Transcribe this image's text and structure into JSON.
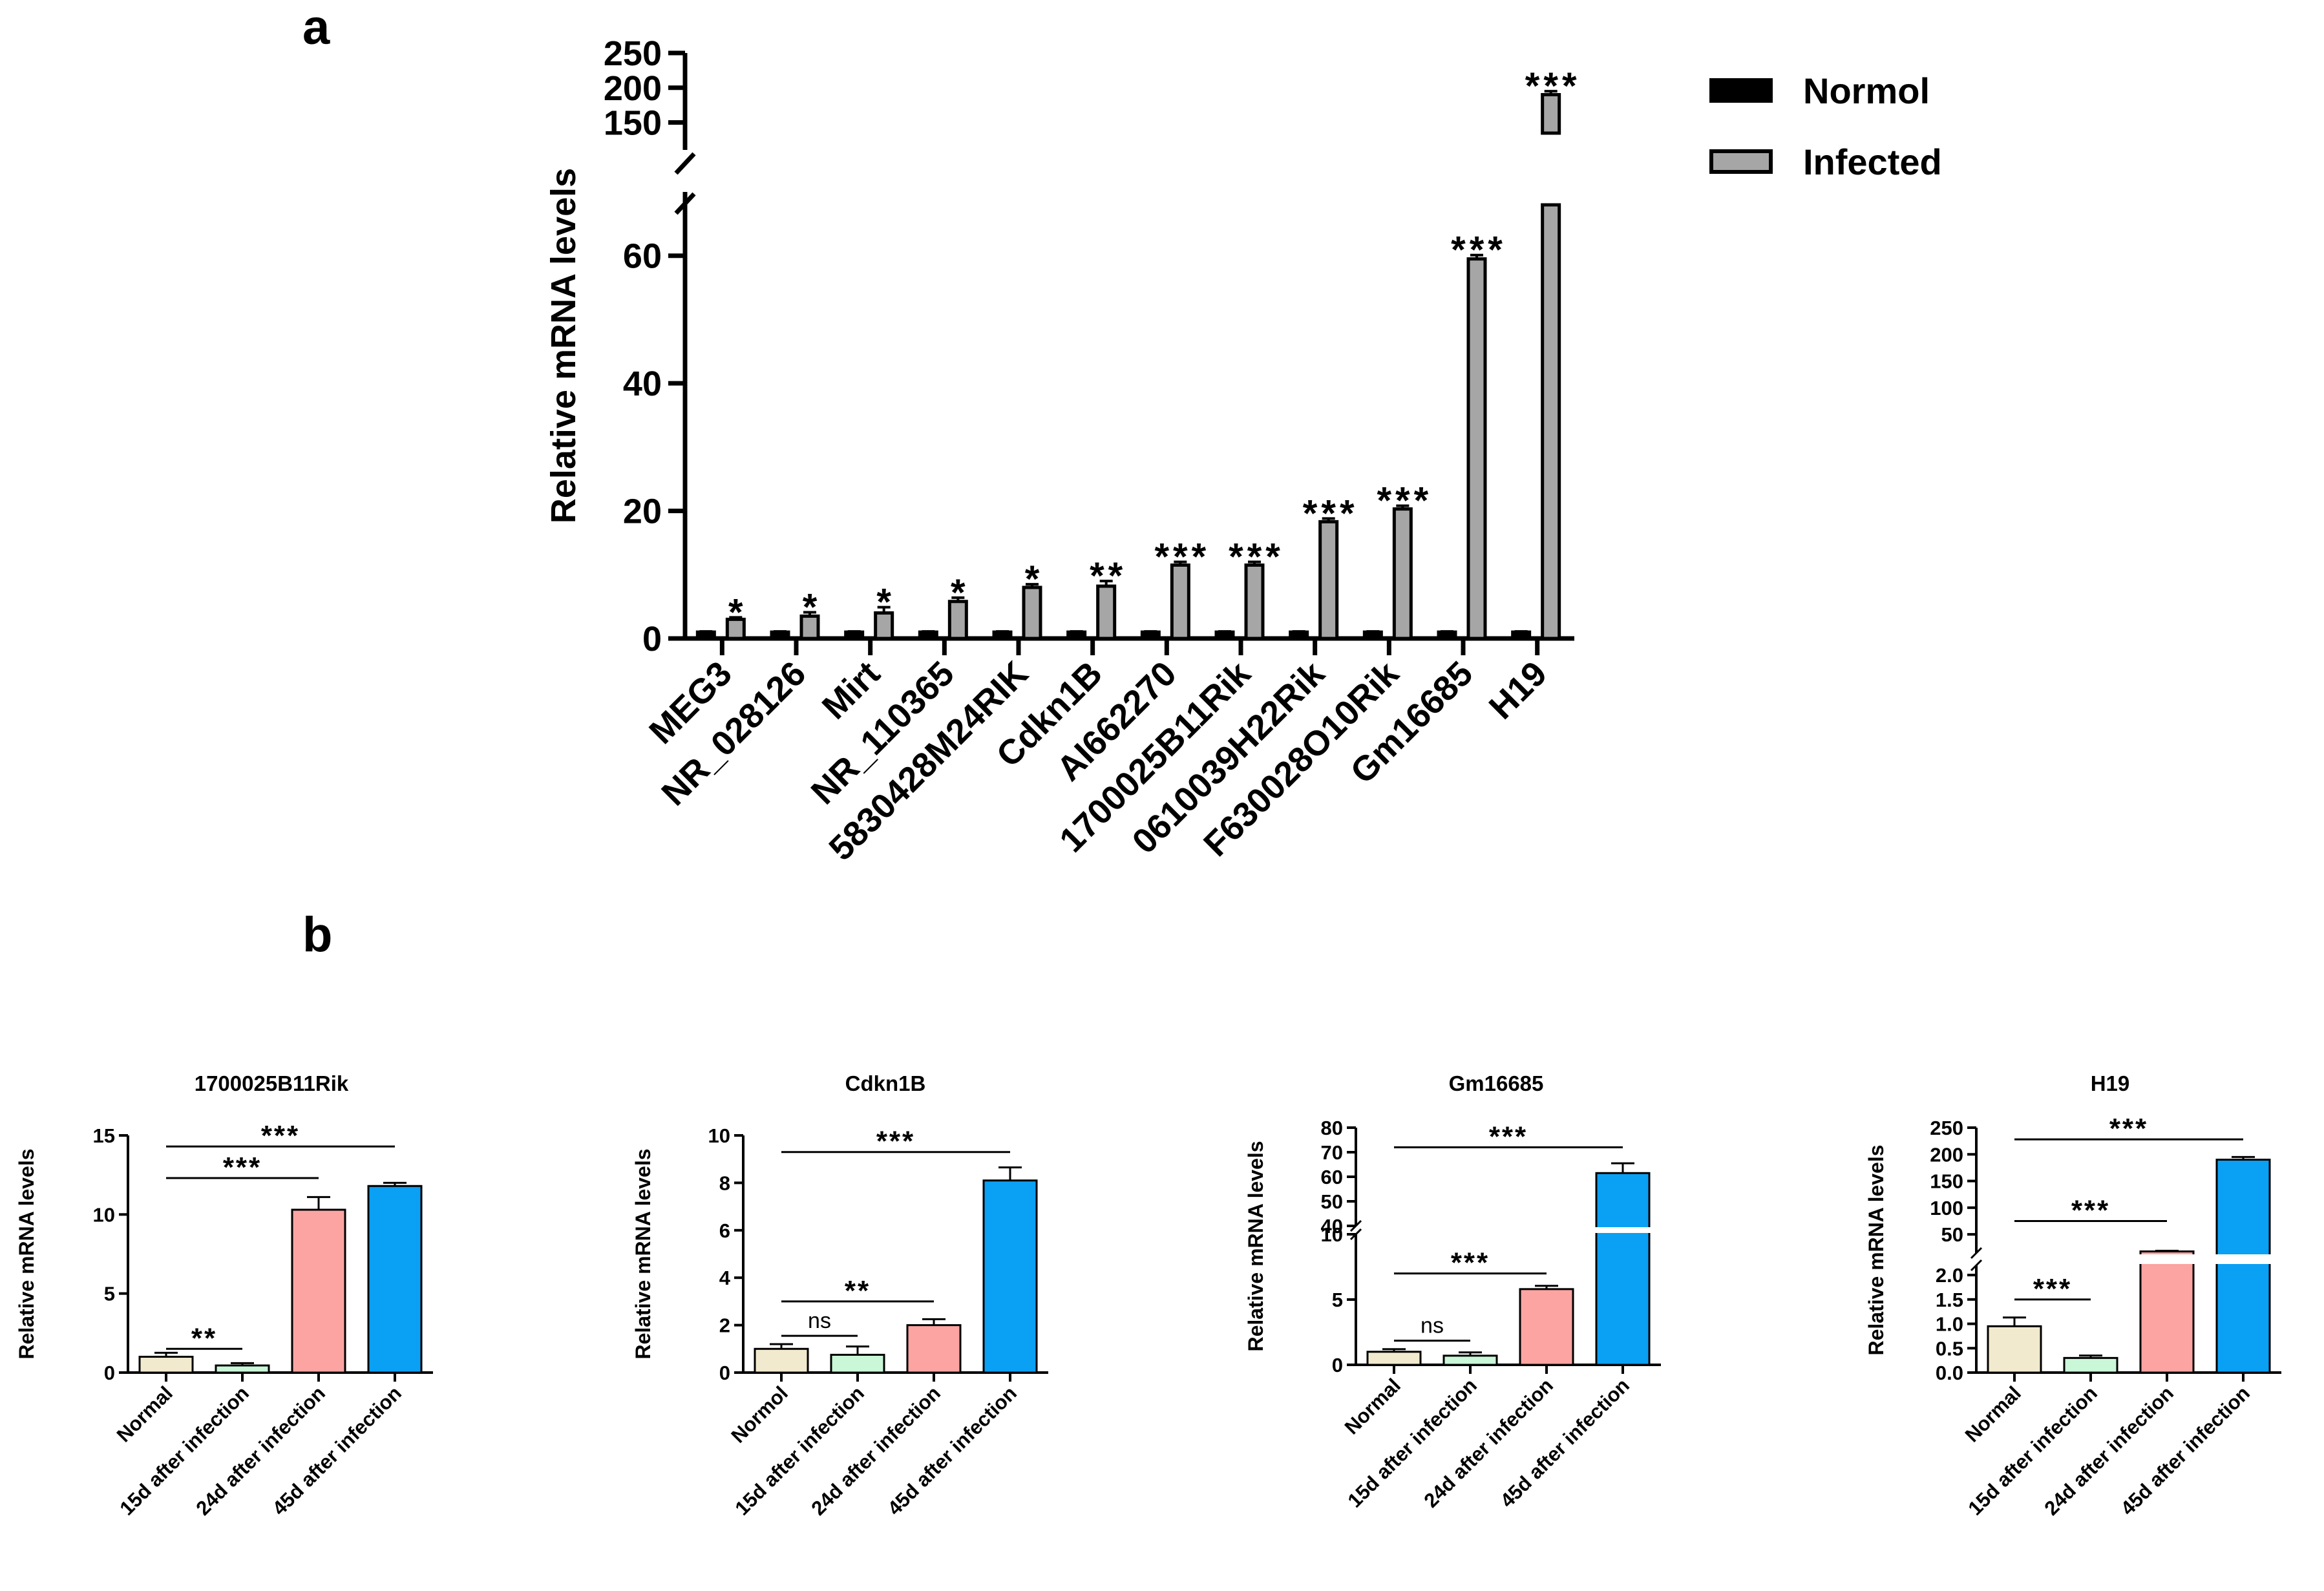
{
  "figure": {
    "panel_a_label": "a",
    "panel_b_label": "b"
  },
  "chart_data": [
    {
      "id": "a",
      "type": "bar",
      "title": "",
      "ylabel": "Relative mRNA levels",
      "xlabel": "",
      "categories": [
        "MEG3",
        "NR_028126",
        "Mirt",
        "NR_110365",
        "5830428M24RIK",
        "Cdkn1B",
        "AI662270",
        "1700025B11Rik",
        "0610039H22Rik",
        "F630028O10Rik",
        "Gm16685",
        "H19"
      ],
      "series": [
        {
          "name": "Normol",
          "color": "#000000",
          "values": [
            1,
            1,
            1,
            1,
            1,
            1,
            1,
            1,
            1,
            1,
            1,
            1
          ],
          "errors": [
            0.1,
            0.1,
            0.1,
            0.1,
            0.1,
            0.1,
            0.1,
            0.1,
            0.1,
            0.1,
            0.1,
            0.1
          ]
        },
        {
          "name": "Infected",
          "color": "#a6a6a6",
          "values": [
            3,
            3.5,
            4,
            5.8,
            8,
            8.2,
            11.5,
            11.5,
            18.3,
            20.3,
            59.5,
            190
          ],
          "errors": [
            0.3,
            0.6,
            0.9,
            0.6,
            0.5,
            0.8,
            0.5,
            0.5,
            0.5,
            0.5,
            0.6,
            5
          ]
        }
      ],
      "significance": [
        "*",
        "*",
        "*",
        "*",
        "*",
        "**",
        "***",
        "***",
        "***",
        "***",
        "***",
        "***"
      ],
      "y_segments": [
        {
          "range": [
            0,
            70
          ],
          "ticks": [
            0,
            20,
            40,
            60
          ]
        },
        {
          "range": [
            130,
            250
          ],
          "ticks": [
            150,
            200,
            250
          ]
        }
      ],
      "legend": "top-right"
    },
    {
      "id": "b1",
      "type": "bar",
      "title": "1700025B11Rik",
      "ylabel": "Relative mRNA levels",
      "categories": [
        "Normal",
        "15d after infection",
        "24d after infection",
        "45d after infection"
      ],
      "values": [
        1,
        0.45,
        10.3,
        11.8
      ],
      "errors": [
        0.25,
        0.15,
        0.8,
        0.2
      ],
      "colors": [
        "#f2eace",
        "#c9f7d8",
        "#fca4a2",
        "#0aa0f4"
      ],
      "y_segments": [
        {
          "range": [
            0,
            15
          ],
          "ticks": [
            0,
            5,
            10,
            15
          ]
        }
      ],
      "comparisons": [
        {
          "from": 0,
          "to": 1,
          "label": "**",
          "y": 1.5
        },
        {
          "from": 0,
          "to": 2,
          "label": "***",
          "y": 12.3
        },
        {
          "from": 0,
          "to": 3,
          "label": "***",
          "y": 14.3
        }
      ]
    },
    {
      "id": "b2",
      "type": "bar",
      "title": "Cdkn1B",
      "ylabel": "Relative mRNA levels",
      "categories": [
        "Normol",
        "15d after infection",
        "24d after infection",
        "45d after infection"
      ],
      "values": [
        1,
        0.75,
        2,
        8.1
      ],
      "errors": [
        0.2,
        0.35,
        0.25,
        0.55
      ],
      "colors": [
        "#f2eace",
        "#c9f7d8",
        "#fca4a2",
        "#0aa0f4"
      ],
      "y_segments": [
        {
          "range": [
            0,
            10
          ],
          "ticks": [
            0,
            2,
            4,
            6,
            8,
            10
          ]
        }
      ],
      "comparisons": [
        {
          "from": 0,
          "to": 1,
          "label": "ns",
          "y": 1.55
        },
        {
          "from": 0,
          "to": 2,
          "label": "**",
          "y": 3.0
        },
        {
          "from": 0,
          "to": 3,
          "label": "***",
          "y": 9.3
        }
      ]
    },
    {
      "id": "b3",
      "type": "bar",
      "title": "Gm16685",
      "ylabel": "Relative mRNA levels",
      "categories": [
        "Normal",
        "15d after infection",
        "24d after infection",
        "45d after infection"
      ],
      "values": [
        1,
        0.7,
        5.8,
        61.5
      ],
      "errors": [
        0.2,
        0.25,
        0.25,
        4
      ],
      "colors": [
        "#f2eace",
        "#c9f7d8",
        "#fca4a2",
        "#0aa0f4"
      ],
      "y_segments": [
        {
          "range": [
            0,
            10
          ],
          "ticks": [
            0,
            5,
            10
          ]
        },
        {
          "range": [
            40,
            80
          ],
          "ticks": [
            40,
            50,
            60,
            70,
            80
          ]
        }
      ],
      "comparisons": [
        {
          "from": 0,
          "to": 1,
          "label": "ns",
          "y": 1.85
        },
        {
          "from": 0,
          "to": 2,
          "label": "***",
          "y": 7.0
        },
        {
          "from": 0,
          "to": 3,
          "label": "***",
          "y": 72
        }
      ]
    },
    {
      "id": "b4",
      "type": "bar",
      "title": "H19",
      "ylabel": "Relative mRNA levels",
      "categories": [
        "Normal",
        "15d after infection",
        "24d after infection",
        "45d after infection"
      ],
      "values": [
        0.95,
        0.3,
        18,
        190
      ],
      "errors": [
        0.18,
        0.05,
        1.2,
        5
      ],
      "colors": [
        "#f2eace",
        "#c9f7d8",
        "#fca4a2",
        "#0aa0f4"
      ],
      "y_segments": [
        {
          "range": [
            0,
            2.2
          ],
          "ticks": [
            0.0,
            0.5,
            1.0,
            1.5,
            2.0
          ]
        },
        {
          "range": [
            15,
            250
          ],
          "ticks": [
            50,
            100,
            150,
            200,
            250
          ]
        }
      ],
      "tick_labels": [
        "0.0",
        "0.5",
        "1.0",
        "1.5",
        "2.0",
        "50",
        "100",
        "150",
        "200",
        "250"
      ],
      "comparisons": [
        {
          "from": 0,
          "to": 1,
          "label": "***",
          "y": 1.5
        },
        {
          "from": 0,
          "to": 2,
          "label": "***",
          "y": 75
        },
        {
          "from": 0,
          "to": 3,
          "label": "***",
          "y": 228
        }
      ]
    }
  ]
}
